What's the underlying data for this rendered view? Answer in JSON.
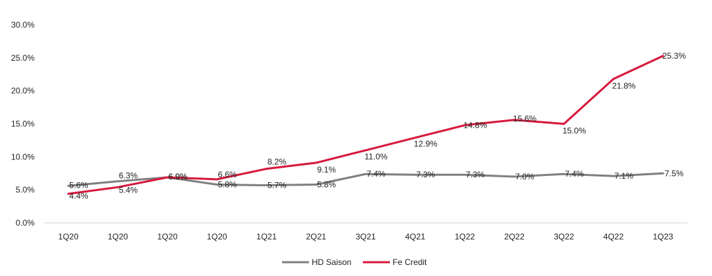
{
  "chart_data": {
    "type": "line",
    "categories": [
      "1Q20",
      "1Q20",
      "1Q20",
      "1Q20",
      "1Q21",
      "2Q21",
      "3Q21",
      "4Q21",
      "1Q22",
      "2Q22",
      "3Q22",
      "4Q22",
      "1Q23"
    ],
    "series": [
      {
        "name": "HD Saison",
        "color": "#808080",
        "values": [
          5.6,
          6.3,
          6.9,
          5.8,
          5.7,
          5.8,
          7.4,
          7.3,
          7.3,
          7.0,
          7.4,
          7.1,
          7.5
        ],
        "labels": [
          "5.6%",
          "6.3%",
          "6.9%",
          "5.8%",
          "5.7%",
          "5.8%",
          "7.4%",
          "7.3%",
          "7.3%",
          "7.0%",
          "7.4%",
          "7.1%",
          "7.5%"
        ]
      },
      {
        "name": "Fe Credit",
        "color": "#d7193c",
        "values": [
          4.4,
          5.4,
          6.9,
          6.6,
          8.2,
          9.1,
          11.0,
          12.9,
          14.8,
          15.6,
          15.0,
          21.8,
          25.3
        ],
        "labels": [
          "4.4%",
          "5.4%",
          "6.9%",
          "6.6%",
          "8.2%",
          "9.1%",
          "11.0%",
          "12.9%",
          "14.8%",
          "15.6%",
          "15.0%",
          "21.8%",
          "25.3%"
        ]
      }
    ],
    "yticks": [
      "0.0%",
      "5.0%",
      "10.0%",
      "15.0%",
      "20.0%",
      "25.0%",
      "30.0%"
    ],
    "ylim": [
      0,
      30
    ],
    "grid": false,
    "legend": "bottom-center",
    "title": "",
    "xlabel": "",
    "ylabel": ""
  }
}
